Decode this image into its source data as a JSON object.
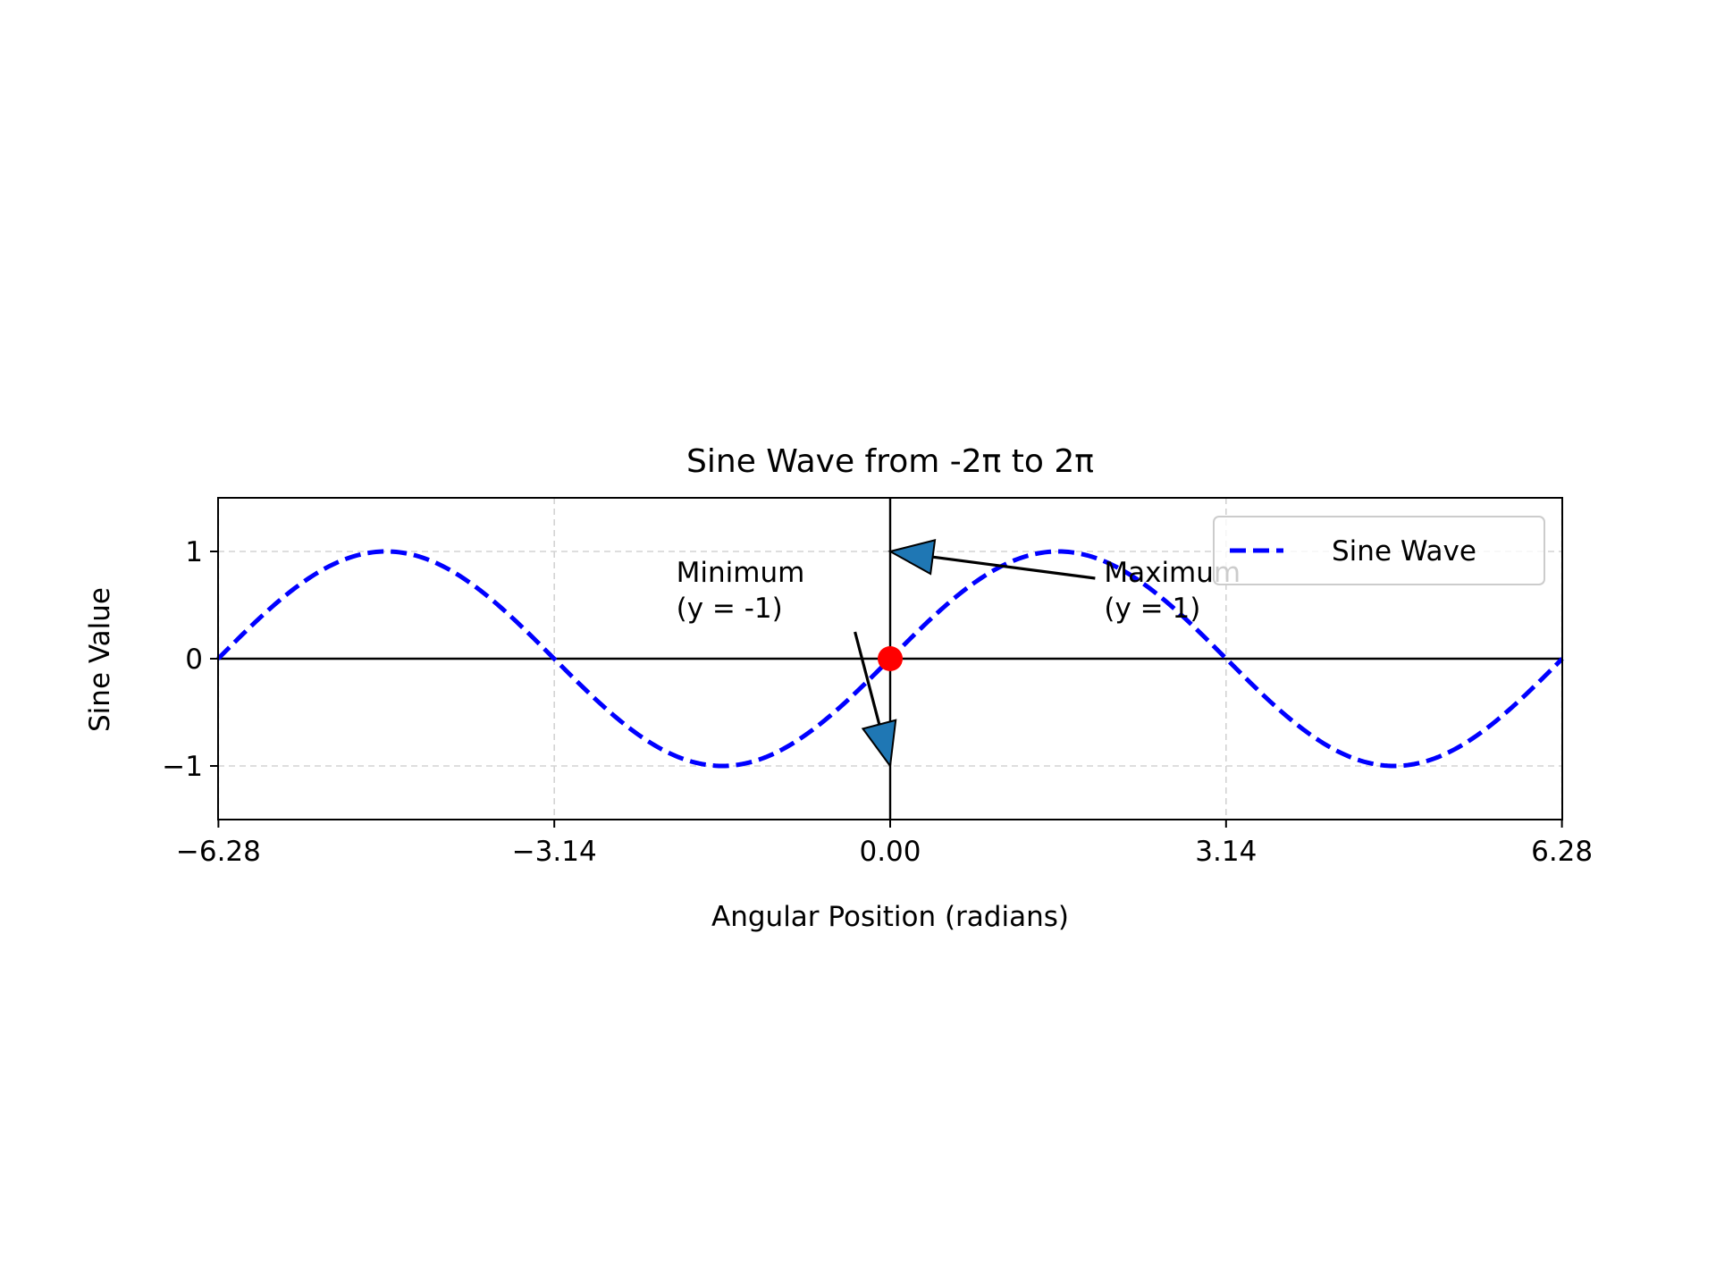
{
  "chart_data": {
    "type": "line",
    "title": "Sine Wave from -2π to 2π",
    "xlabel": "Angular Position (radians)",
    "ylabel": "Sine Value",
    "xlim": [
      -6.2832,
      6.2832
    ],
    "ylim": [
      -1.5,
      1.5
    ],
    "x_ticks": [
      -6.28,
      -3.14,
      0.0,
      3.14,
      6.28
    ],
    "x_tick_labels": [
      "−6.28",
      "−3.14",
      "0.00",
      "3.14",
      "6.28"
    ],
    "y_ticks": [
      -1,
      0,
      1
    ],
    "y_tick_labels": [
      "−1",
      "0",
      "1"
    ],
    "grid": true,
    "legend_position": "top-right",
    "series": [
      {
        "name": "Sine Wave",
        "function": "sin",
        "x_range": [
          -6.2832,
          6.2832
        ],
        "color": "#0000ff",
        "linestyle": "dashed"
      }
    ],
    "reference_lines": {
      "horizontal_y": 0,
      "vertical_x": 0,
      "color": "#000000"
    },
    "markers": [
      {
        "x": 0,
        "y": 0,
        "color": "#ff0000"
      }
    ],
    "annotations": [
      {
        "label": "maximum",
        "text": "Maximum\n(y = 1)",
        "point": [
          0,
          1
        ],
        "text_anchor": [
          2.0,
          0.5
        ]
      },
      {
        "label": "minimum",
        "text": "Minimum\n(y = -1)",
        "point": [
          0,
          -1
        ],
        "text_anchor": [
          -2.0,
          0.5
        ]
      }
    ],
    "arrow_color": "#1f77b4"
  }
}
